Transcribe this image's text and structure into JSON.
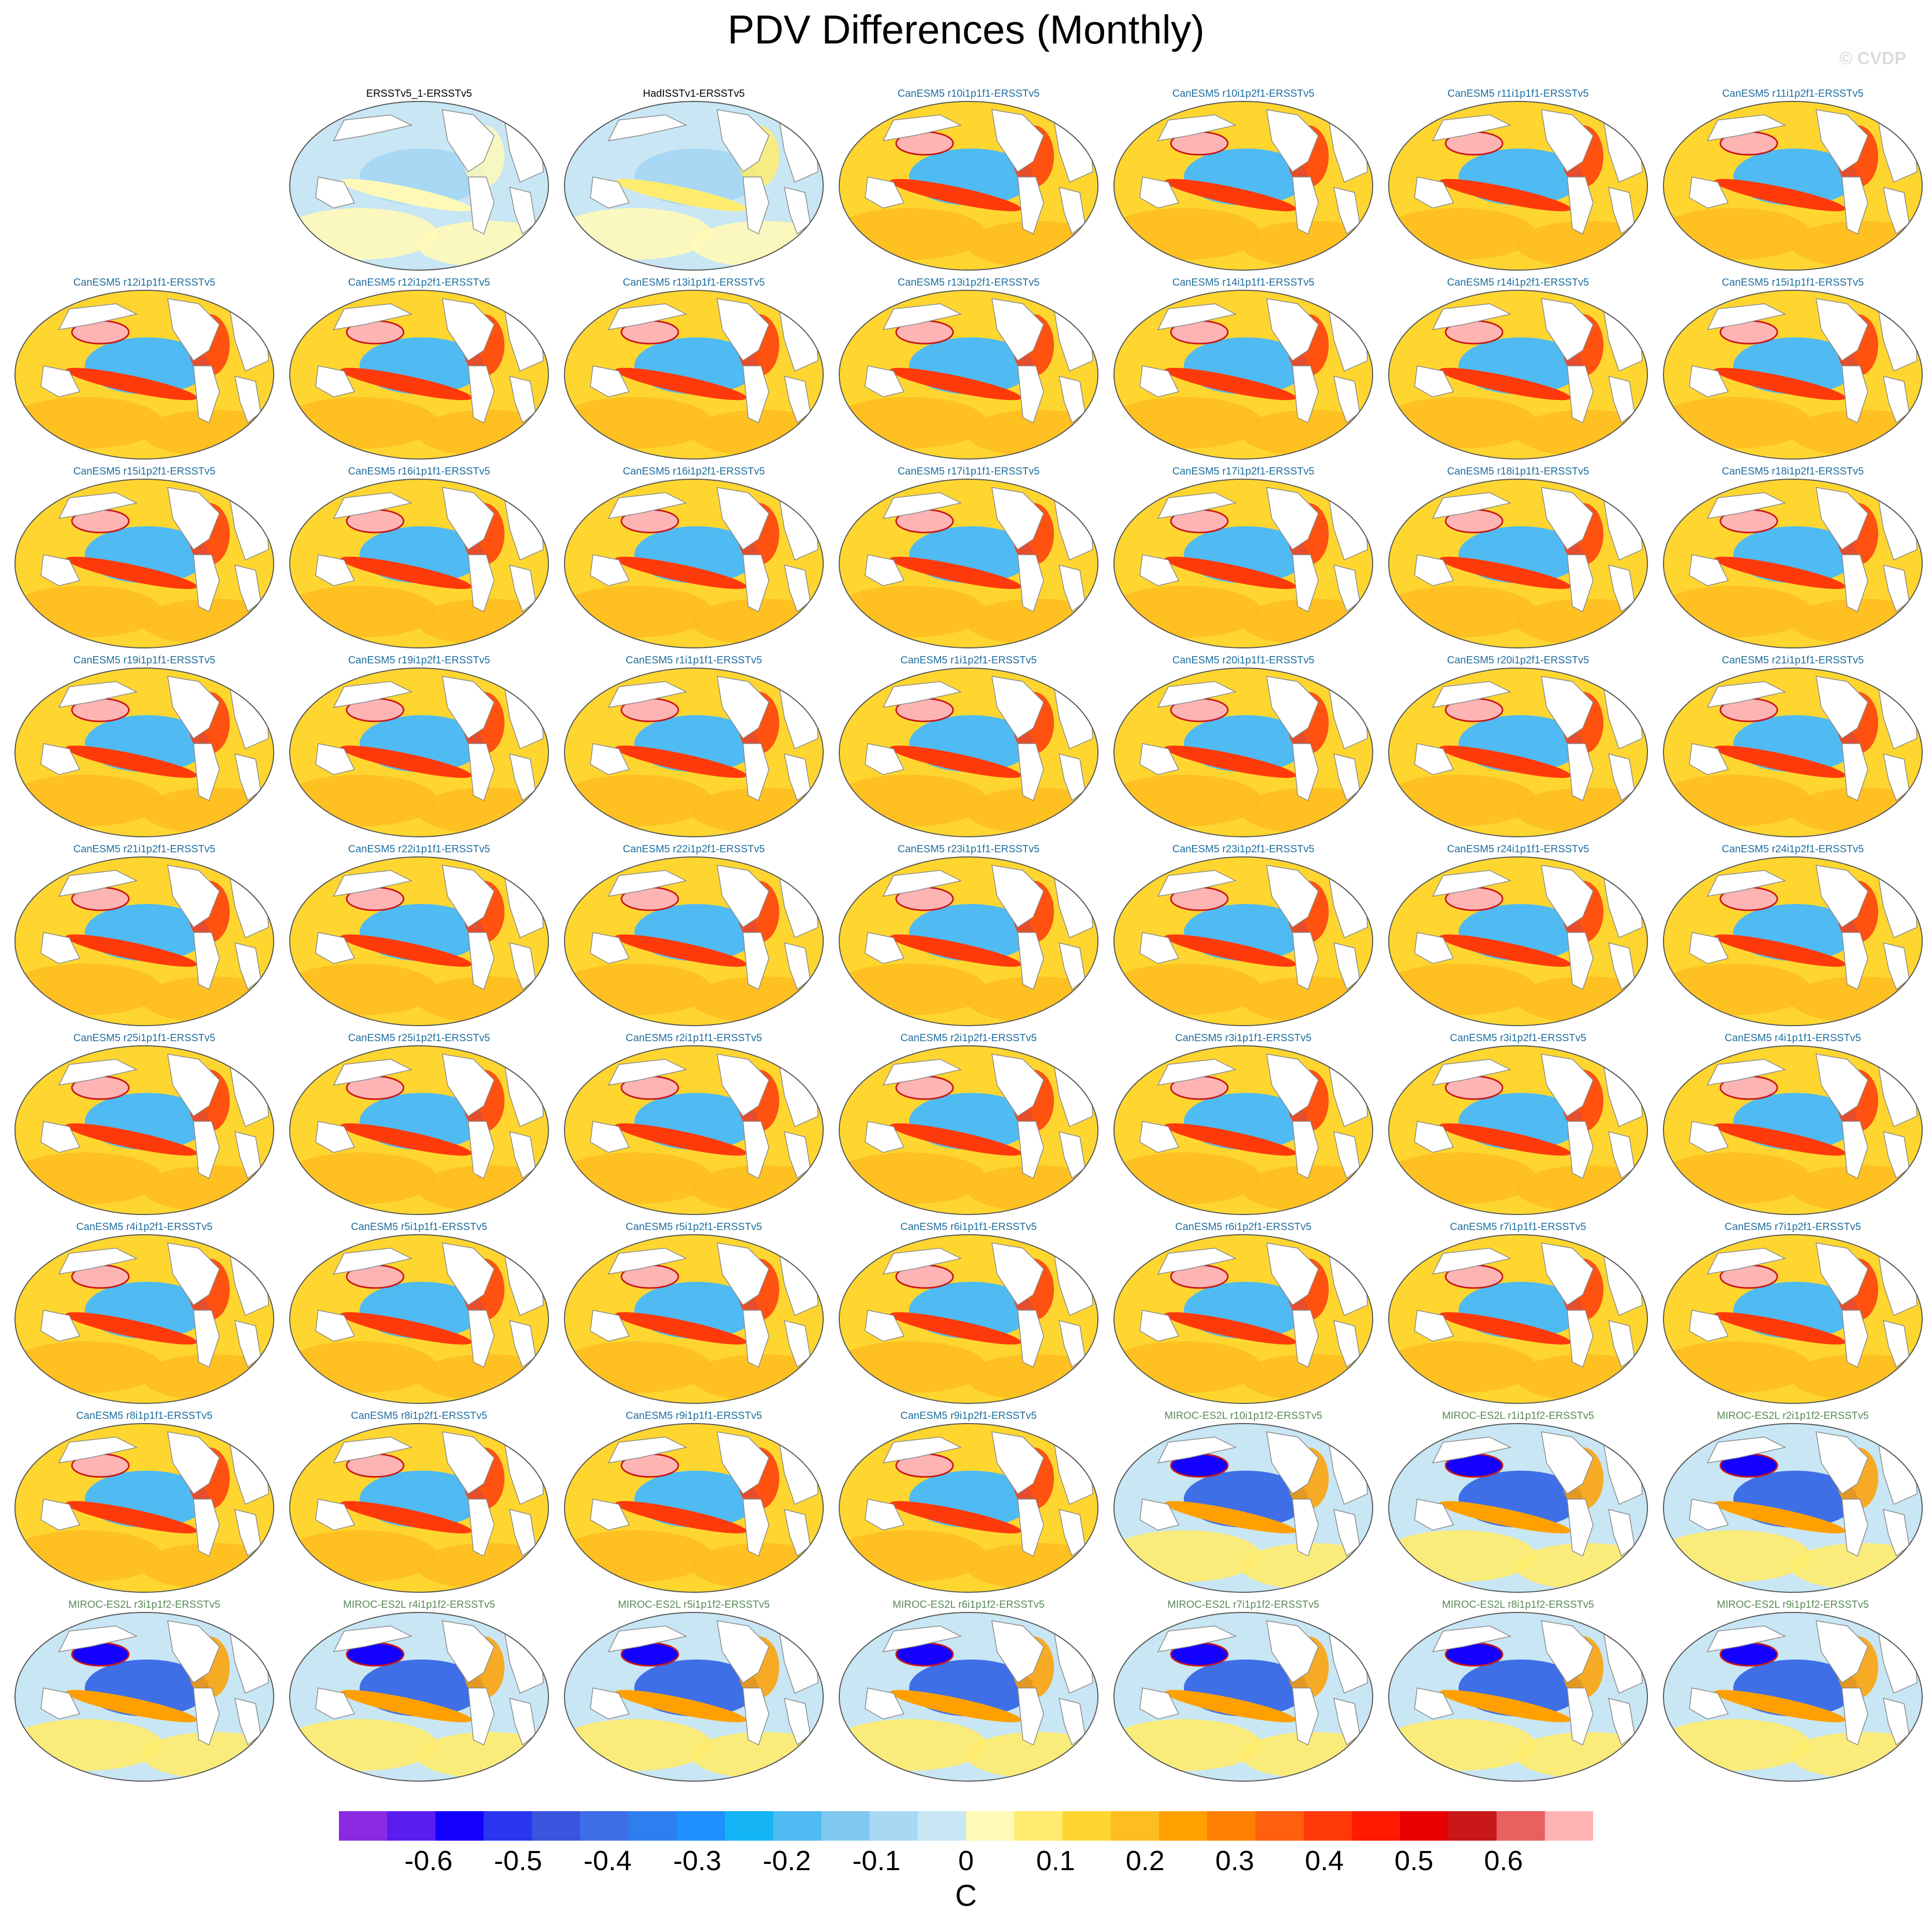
{
  "title": "PDV Differences (Monthly)",
  "credit": "© CVDP",
  "colors": {
    "obs_title": "#000000",
    "canesm_title": "#1f6e9e",
    "miroc_title": "#5a8a5a",
    "ocean_frame": "#555555",
    "land": "#ffffff"
  },
  "panels": [
    {
      "title": "ERSSTv5_1-ERSSTv5",
      "group": "obs1"
    },
    {
      "title": "HadISSTv1-ERSSTv5",
      "group": "obs2"
    },
    {
      "title": "CanESM5 r10i1p1f1-ERSSTv5",
      "group": "canesm"
    },
    {
      "title": "CanESM5 r10i1p2f1-ERSSTv5",
      "group": "canesm"
    },
    {
      "title": "CanESM5 r11i1p1f1-ERSSTv5",
      "group": "canesm"
    },
    {
      "title": "CanESM5 r11i1p2f1-ERSSTv5",
      "group": "canesm"
    },
    {
      "title": "CanESM5 r12i1p1f1-ERSSTv5",
      "group": "canesm"
    },
    {
      "title": "CanESM5 r12i1p2f1-ERSSTv5",
      "group": "canesm"
    },
    {
      "title": "CanESM5 r13i1p1f1-ERSSTv5",
      "group": "canesm"
    },
    {
      "title": "CanESM5 r13i1p2f1-ERSSTv5",
      "group": "canesm"
    },
    {
      "title": "CanESM5 r14i1p1f1-ERSSTv5",
      "group": "canesm"
    },
    {
      "title": "CanESM5 r14i1p2f1-ERSSTv5",
      "group": "canesm"
    },
    {
      "title": "CanESM5 r15i1p1f1-ERSSTv5",
      "group": "canesm"
    },
    {
      "title": "CanESM5 r15i1p2f1-ERSSTv5",
      "group": "canesm"
    },
    {
      "title": "CanESM5 r16i1p1f1-ERSSTv5",
      "group": "canesm"
    },
    {
      "title": "CanESM5 r16i1p2f1-ERSSTv5",
      "group": "canesm"
    },
    {
      "title": "CanESM5 r17i1p1f1-ERSSTv5",
      "group": "canesm"
    },
    {
      "title": "CanESM5 r17i1p2f1-ERSSTv5",
      "group": "canesm"
    },
    {
      "title": "CanESM5 r18i1p1f1-ERSSTv5",
      "group": "canesm"
    },
    {
      "title": "CanESM5 r18i1p2f1-ERSSTv5",
      "group": "canesm"
    },
    {
      "title": "CanESM5 r19i1p1f1-ERSSTv5",
      "group": "canesm"
    },
    {
      "title": "CanESM5 r19i1p2f1-ERSSTv5",
      "group": "canesm"
    },
    {
      "title": "CanESM5 r1i1p1f1-ERSSTv5",
      "group": "canesm"
    },
    {
      "title": "CanESM5 r1i1p2f1-ERSSTv5",
      "group": "canesm"
    },
    {
      "title": "CanESM5 r20i1p1f1-ERSSTv5",
      "group": "canesm"
    },
    {
      "title": "CanESM5 r20i1p2f1-ERSSTv5",
      "group": "canesm"
    },
    {
      "title": "CanESM5 r21i1p1f1-ERSSTv5",
      "group": "canesm"
    },
    {
      "title": "CanESM5 r21i1p2f1-ERSSTv5",
      "group": "canesm"
    },
    {
      "title": "CanESM5 r22i1p1f1-ERSSTv5",
      "group": "canesm"
    },
    {
      "title": "CanESM5 r22i1p2f1-ERSSTv5",
      "group": "canesm"
    },
    {
      "title": "CanESM5 r23i1p1f1-ERSSTv5",
      "group": "canesm"
    },
    {
      "title": "CanESM5 r23i1p2f1-ERSSTv5",
      "group": "canesm"
    },
    {
      "title": "CanESM5 r24i1p1f1-ERSSTv5",
      "group": "canesm"
    },
    {
      "title": "CanESM5 r24i1p2f1-ERSSTv5",
      "group": "canesm"
    },
    {
      "title": "CanESM5 r25i1p1f1-ERSSTv5",
      "group": "canesm"
    },
    {
      "title": "CanESM5 r25i1p2f1-ERSSTv5",
      "group": "canesm"
    },
    {
      "title": "CanESM5 r2i1p1f1-ERSSTv5",
      "group": "canesm"
    },
    {
      "title": "CanESM5 r2i1p2f1-ERSSTv5",
      "group": "canesm"
    },
    {
      "title": "CanESM5 r3i1p1f1-ERSSTv5",
      "group": "canesm"
    },
    {
      "title": "CanESM5 r3i1p2f1-ERSSTv5",
      "group": "canesm"
    },
    {
      "title": "CanESM5 r4i1p1f1-ERSSTv5",
      "group": "canesm"
    },
    {
      "title": "CanESM5 r4i1p2f1-ERSSTv5",
      "group": "canesm"
    },
    {
      "title": "CanESM5 r5i1p1f1-ERSSTv5",
      "group": "canesm"
    },
    {
      "title": "CanESM5 r5i1p2f1-ERSSTv5",
      "group": "canesm"
    },
    {
      "title": "CanESM5 r6i1p1f1-ERSSTv5",
      "group": "canesm"
    },
    {
      "title": "CanESM5 r6i1p2f1-ERSSTv5",
      "group": "canesm"
    },
    {
      "title": "CanESM5 r7i1p1f1-ERSSTv5",
      "group": "canesm"
    },
    {
      "title": "CanESM5 r7i1p2f1-ERSSTv5",
      "group": "canesm"
    },
    {
      "title": "CanESM5 r8i1p1f1-ERSSTv5",
      "group": "canesm"
    },
    {
      "title": "CanESM5 r8i1p2f1-ERSSTv5",
      "group": "canesm"
    },
    {
      "title": "CanESM5 r9i1p1f1-ERSSTv5",
      "group": "canesm"
    },
    {
      "title": "CanESM5 r9i1p2f1-ERSSTv5",
      "group": "canesm"
    },
    {
      "title": "MIROC-ES2L r10i1p1f2-ERSSTv5",
      "group": "miroc"
    },
    {
      "title": "MIROC-ES2L r1i1p1f2-ERSSTv5",
      "group": "miroc"
    },
    {
      "title": "MIROC-ES2L r2i1p1f2-ERSSTv5",
      "group": "miroc"
    },
    {
      "title": "MIROC-ES2L r3i1p1f2-ERSSTv5",
      "group": "miroc"
    },
    {
      "title": "MIROC-ES2L r4i1p1f2-ERSSTv5",
      "group": "miroc"
    },
    {
      "title": "MIROC-ES2L r5i1p1f2-ERSSTv5",
      "group": "miroc"
    },
    {
      "title": "MIROC-ES2L r6i1p1f2-ERSSTv5",
      "group": "miroc"
    },
    {
      "title": "MIROC-ES2L r7i1p1f2-ERSSTv5",
      "group": "miroc"
    },
    {
      "title": "MIROC-ES2L r8i1p1f2-ERSSTv5",
      "group": "miroc"
    },
    {
      "title": "MIROC-ES2L r9i1p1f2-ERSSTv5",
      "group": "miroc"
    }
  ],
  "chart_data": {
    "type": "heatmap",
    "title": "PDV Differences (Monthly)",
    "projection": "global map, Pacific-centred",
    "colorbar": {
      "label": "C",
      "tick_labels": [
        "-0.6",
        "-0.5",
        "-0.4",
        "-0.3",
        "-0.2",
        "-0.1",
        "0",
        "0.1",
        "0.2",
        "0.3",
        "0.4",
        "0.5",
        "0.6"
      ],
      "range": [
        -0.7,
        0.7
      ],
      "colors": [
        "#8a2be2",
        "#5a1df0",
        "#1400ff",
        "#2a35f0",
        "#3b55e0",
        "#3f6fe6",
        "#2f7ef0",
        "#1e90ff",
        "#14b4f5",
        "#4fbbf2",
        "#80c8f0",
        "#a8d8f4",
        "#c8e6f4",
        "#fff9b8",
        "#ffec6e",
        "#ffd630",
        "#ffbe20",
        "#ffa000",
        "#ff8000",
        "#ff6010",
        "#ff3a0a",
        "#ff1a00",
        "#e80000",
        "#c81818",
        "#e86060",
        "#ffb4b4"
      ]
    }
  }
}
